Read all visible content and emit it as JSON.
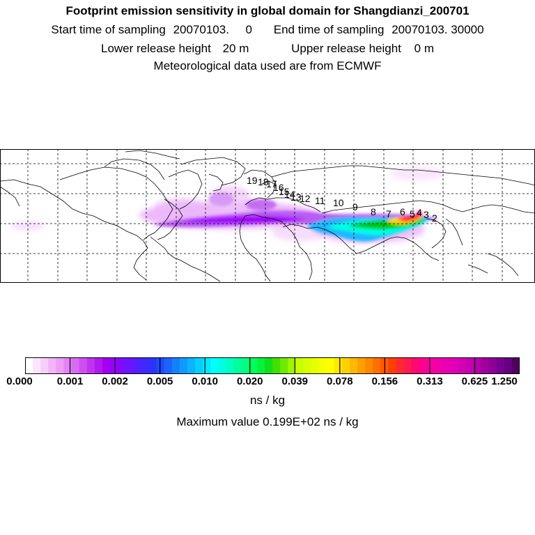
{
  "header": {
    "title": "Footprint emission sensitivity in global domain for Shangdianzi_200701",
    "start_label": "Start time of sampling",
    "start_value": "20070103.     0",
    "end_label": "End time of sampling",
    "end_value": "20070103. 30000",
    "lower_label": "Lower release height",
    "lower_value": "20 m",
    "upper_label": "Upper release height",
    "upper_value": "0 m",
    "met_line": "Meteorological data used are from ECMWF"
  },
  "map": {
    "receptor_labels": [
      "2",
      "3",
      "4",
      "5",
      "6",
      "7",
      "8",
      "9",
      "10",
      "11",
      "12",
      "13",
      "14",
      "15",
      "16",
      "17",
      "18",
      "19"
    ],
    "plume_colors": [
      "#f3c7fb",
      "#e08af7",
      "#c95cf2",
      "#a600ff",
      "#1fd6ff",
      "#00ffe1",
      "#00c800",
      "#ffff00",
      "#ff9a00",
      "#ff0040"
    ]
  },
  "colorbar": {
    "tick_labels": [
      "0.000",
      "0.001",
      "0.002",
      "0.005",
      "0.010",
      "0.020",
      "0.039",
      "0.078",
      "0.156",
      "0.313",
      "0.625",
      "1.250"
    ],
    "colors": [
      "#ffffff",
      "#fbe6fd",
      "#f6cefb",
      "#f1b5f9",
      "#ec9df7",
      "#e483f5",
      "#d96af3",
      "#cd4ff0",
      "#c033ee",
      "#b219ee",
      "#a300f0",
      "#9600ff",
      "#7f0aff",
      "#6a14ff",
      "#551eff",
      "#4128ff",
      "#2c32ff",
      "#1f4aff",
      "#1a64ff",
      "#157fff",
      "#109aff",
      "#0bb4ff",
      "#06cfff",
      "#00e9ff",
      "#00ffff",
      "#00ffe0",
      "#00ffc0",
      "#00ff9e",
      "#00ff7c",
      "#00ff5a",
      "#00f43c",
      "#10e01c",
      "#40e000",
      "#70ea00",
      "#9ef400",
      "#c8ff00",
      "#d8ff00",
      "#e8ff00",
      "#f8ff00",
      "#ffff00",
      "#ffe800",
      "#ffd000",
      "#ffb800",
      "#ffa000",
      "#ff8800",
      "#ff7000",
      "#ff5800",
      "#ff4000",
      "#ff2a30",
      "#ff1a50",
      "#ff0870",
      "#ff0090",
      "#f800a0",
      "#f000a8",
      "#e800b0",
      "#e000b8",
      "#d400b4",
      "#c400b0",
      "#b400a8",
      "#a000a0",
      "#8c0098",
      "#780090",
      "#640080",
      "#500060"
    ],
    "unit": "ns / kg"
  },
  "footer": {
    "max_value": "Maximum value  0.199E+02 ns / kg"
  }
}
